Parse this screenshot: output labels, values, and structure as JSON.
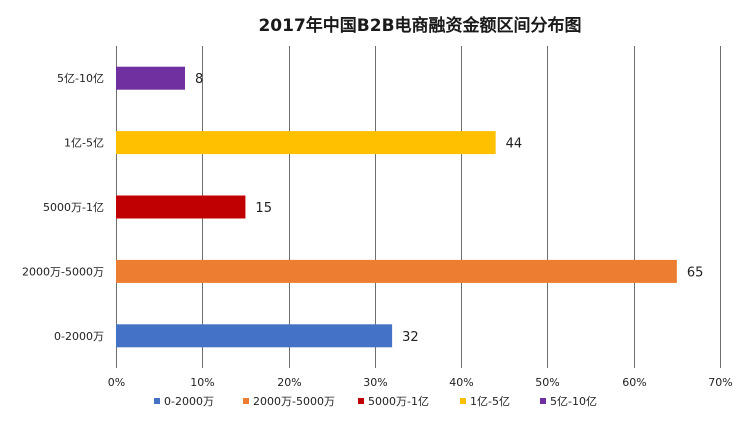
{
  "chart_data": {
    "type": "bar",
    "orientation": "horizontal",
    "title": "2017年中国B2B电商融资金额区间分布图",
    "xlabel": "",
    "ylabel": "",
    "categories": [
      "0-2000万",
      "2000万-5000万",
      "5000万-1亿",
      "1亿-5亿",
      "5亿-10亿"
    ],
    "values": [
      32,
      65,
      15,
      44,
      8
    ],
    "data_labels": [
      "32",
      "65",
      "15",
      "44",
      "8"
    ],
    "colors": [
      "#4472C4",
      "#ED7D31",
      "#C00000",
      "#FFC000",
      "#7030A0"
    ],
    "xlim": [
      0,
      70
    ],
    "x_ticks": [
      0,
      10,
      20,
      30,
      40,
      50,
      60,
      70
    ],
    "x_tick_labels": [
      "0%",
      "10%",
      "20%",
      "30%",
      "40%",
      "50%",
      "60%",
      "70%"
    ],
    "grid": "vertical",
    "legend_position": "bottom",
    "legend": [
      "0-2000万",
      "2000万-5000万",
      "5000万-1亿",
      "1亿-5亿",
      "5亿-10亿"
    ]
  }
}
